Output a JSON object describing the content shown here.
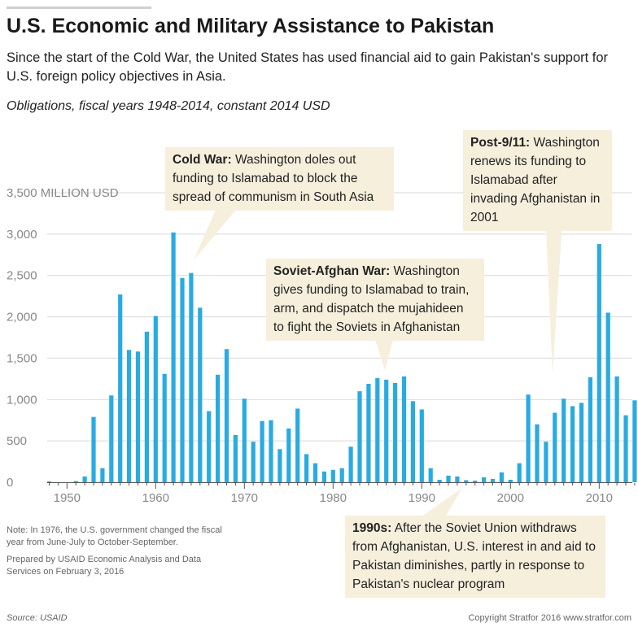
{
  "header": {
    "title": "U.S. Economic and Military Assistance to Pakistan",
    "subtitle": "Since the start of the Cold War, the United States has used financial aid to gain Pakistan's support for U.S. foreign policy objectives in Asia.",
    "units": "Obligations, fiscal years 1948-2014, constant 2014 USD"
  },
  "colors": {
    "bar": "#29abe2",
    "annotation_bg": "#f6efdc",
    "grid": "#d9d9d9",
    "axis": "#555555"
  },
  "chart_data": {
    "type": "bar",
    "title": "U.S. Economic and Military Assistance to Pakistan",
    "xlabel": "",
    "ylabel": "MILLION USD",
    "ylim": [
      0,
      3500
    ],
    "y_ticks": [
      0,
      500,
      1000,
      1500,
      2000,
      2500,
      3000,
      3500
    ],
    "y_tick_labels": [
      "0",
      "500",
      "1,000",
      "1,500",
      "2,000",
      "2,500",
      "3,000",
      "3,500 MILLION USD"
    ],
    "x_ticks": [
      1950,
      1960,
      1970,
      1980,
      1990,
      2000,
      2010
    ],
    "x_tick_labels": [
      "1950",
      "1960",
      "1970",
      "1980",
      "1990",
      "2000",
      "2010"
    ],
    "categories": [
      1948,
      1949,
      1950,
      1951,
      1952,
      1953,
      1954,
      1955,
      1956,
      1957,
      1958,
      1959,
      1960,
      1961,
      1962,
      1963,
      1964,
      1965,
      1966,
      1967,
      1968,
      1969,
      1970,
      1971,
      1972,
      1973,
      1974,
      1975,
      1976,
      1977,
      1978,
      1979,
      1980,
      1981,
      1982,
      1983,
      1984,
      1985,
      1986,
      1987,
      1988,
      1989,
      1990,
      1991,
      1992,
      1993,
      1994,
      1995,
      1996,
      1997,
      1998,
      1999,
      2000,
      2001,
      2002,
      2003,
      2004,
      2005,
      2006,
      2007,
      2008,
      2009,
      2010,
      2011,
      2012,
      2013,
      2014
    ],
    "values": [
      10,
      0,
      0,
      15,
      70,
      790,
      170,
      1050,
      2270,
      1600,
      1580,
      1820,
      2010,
      1310,
      3020,
      2470,
      2530,
      2110,
      860,
      1300,
      1610,
      570,
      1010,
      490,
      740,
      750,
      400,
      650,
      890,
      340,
      230,
      130,
      150,
      170,
      430,
      1100,
      1190,
      1260,
      1240,
      1200,
      1280,
      980,
      880,
      170,
      30,
      80,
      70,
      25,
      20,
      60,
      40,
      120,
      30,
      230,
      1060,
      700,
      490,
      840,
      1010,
      920,
      960,
      1270,
      2880,
      2050,
      1280,
      810,
      990
    ]
  },
  "annotations": {
    "cold_war": {
      "label": "Cold War:",
      "text": "Washington doles out funding to Islamabad to block the spread of communism in South Asia"
    },
    "soviet_afghan": {
      "label": "Soviet-Afghan War:",
      "text": "Washington gives funding to Islamabad to train, arm, and dispatch the mujahideen to fight the Soviets in Afghanistan"
    },
    "post_911": {
      "label": "Post-9/11:",
      "text": "Washington renews its funding to Islamabad after invading Afghanistan in 2001"
    },
    "nineties": {
      "label": "1990s:",
      "text": "After the Soviet Union withdraws from Afghanistan, U.S. interest in and aid to Pakistan diminishes, partly in response to Pakistan's nuclear program"
    }
  },
  "footer": {
    "note": "Note: In 1976, the U.S. government changed the fiscal year from June-July to October-September.",
    "prepared": "Prepared by USAID Economic Analysis and Data Services on February 3, 2016",
    "source": "Source: USAID",
    "copyright": "Copyright Stratfor 2016 www.stratfor.com"
  }
}
